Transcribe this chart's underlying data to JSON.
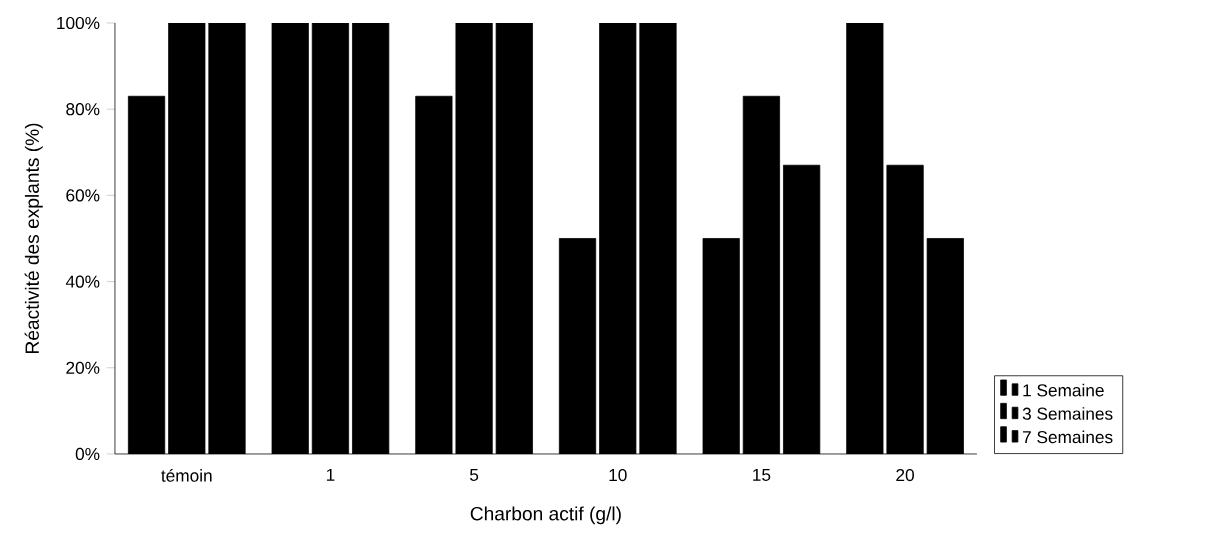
{
  "chart_data": {
    "type": "bar",
    "xlabel": "Charbon actif (g/l)",
    "ylabel": "Réactivité des explants (%)",
    "categories": [
      "témoin",
      "1",
      "5",
      "10",
      "15",
      "20"
    ],
    "series": [
      {
        "name": "1 Semaine",
        "color": "#000000",
        "values": [
          83,
          100,
          83,
          50,
          50,
          100
        ]
      },
      {
        "name": "3 Semaines",
        "color": "#000000",
        "values": [
          100,
          100,
          100,
          100,
          83,
          67
        ]
      },
      {
        "name": "7 Semaines",
        "color": "#000000",
        "values": [
          100,
          100,
          100,
          100,
          67,
          50
        ]
      }
    ],
    "ylim": [
      0,
      100
    ],
    "yticks": [
      {
        "value": 0,
        "label": "0%"
      },
      {
        "value": 20,
        "label": "20%"
      },
      {
        "value": 40,
        "label": "40%"
      },
      {
        "value": 60,
        "label": "60%"
      },
      {
        "value": 80,
        "label": "80%"
      },
      {
        "value": 100,
        "label": "100%"
      }
    ],
    "legend": "bottom right"
  }
}
